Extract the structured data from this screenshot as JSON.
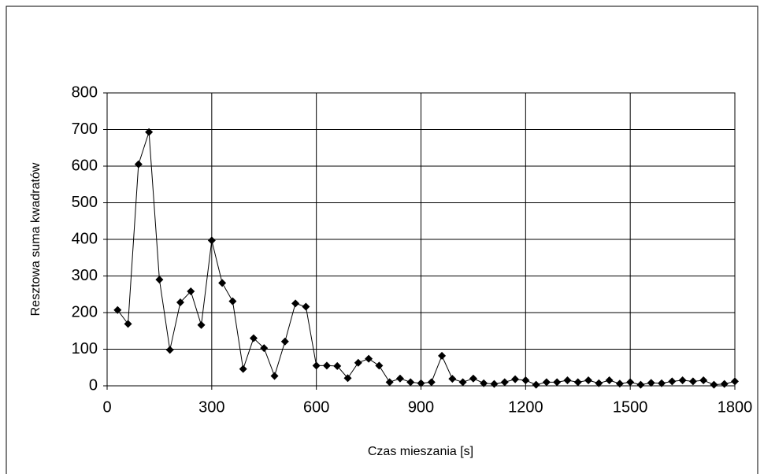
{
  "chart_data": {
    "type": "line",
    "x_label": "Czas mieszania [s]",
    "y_label": "Resztowa suma kwadratów",
    "color": "#000000",
    "grid": true,
    "x": [
      30,
      60,
      90,
      120,
      150,
      180,
      210,
      240,
      270,
      300,
      330,
      360,
      390,
      420,
      450,
      480,
      510,
      540,
      570,
      600,
      630,
      660,
      690,
      720,
      750,
      780,
      810,
      840,
      870,
      900,
      930,
      960,
      990,
      1020,
      1050,
      1080,
      1110,
      1140,
      1170,
      1200,
      1230,
      1260,
      1290,
      1320,
      1350,
      1380,
      1410,
      1440,
      1470,
      1500,
      1530,
      1560,
      1590,
      1620,
      1650,
      1680,
      1710,
      1740,
      1770,
      1800
    ],
    "values": [
      207,
      169,
      605,
      693,
      290,
      98,
      228,
      258,
      166,
      397,
      281,
      231,
      46,
      130,
      103,
      27,
      121,
      225,
      216,
      55,
      55,
      54,
      21,
      63,
      74,
      55,
      10,
      20,
      10,
      7,
      10,
      82,
      19,
      10,
      20,
      7,
      5,
      10,
      18,
      15,
      3,
      10,
      10,
      15,
      10,
      15,
      7,
      15,
      6,
      10,
      3,
      8,
      7,
      12,
      15,
      12,
      15,
      3,
      5,
      12
    ],
    "xlim": [
      0,
      1800
    ],
    "xticks": [
      0,
      300,
      600,
      900,
      1200,
      1500,
      1800
    ],
    "ylim": [
      0,
      800
    ],
    "yticks": [
      0,
      100,
      200,
      300,
      400,
      500,
      600,
      700,
      800
    ]
  }
}
